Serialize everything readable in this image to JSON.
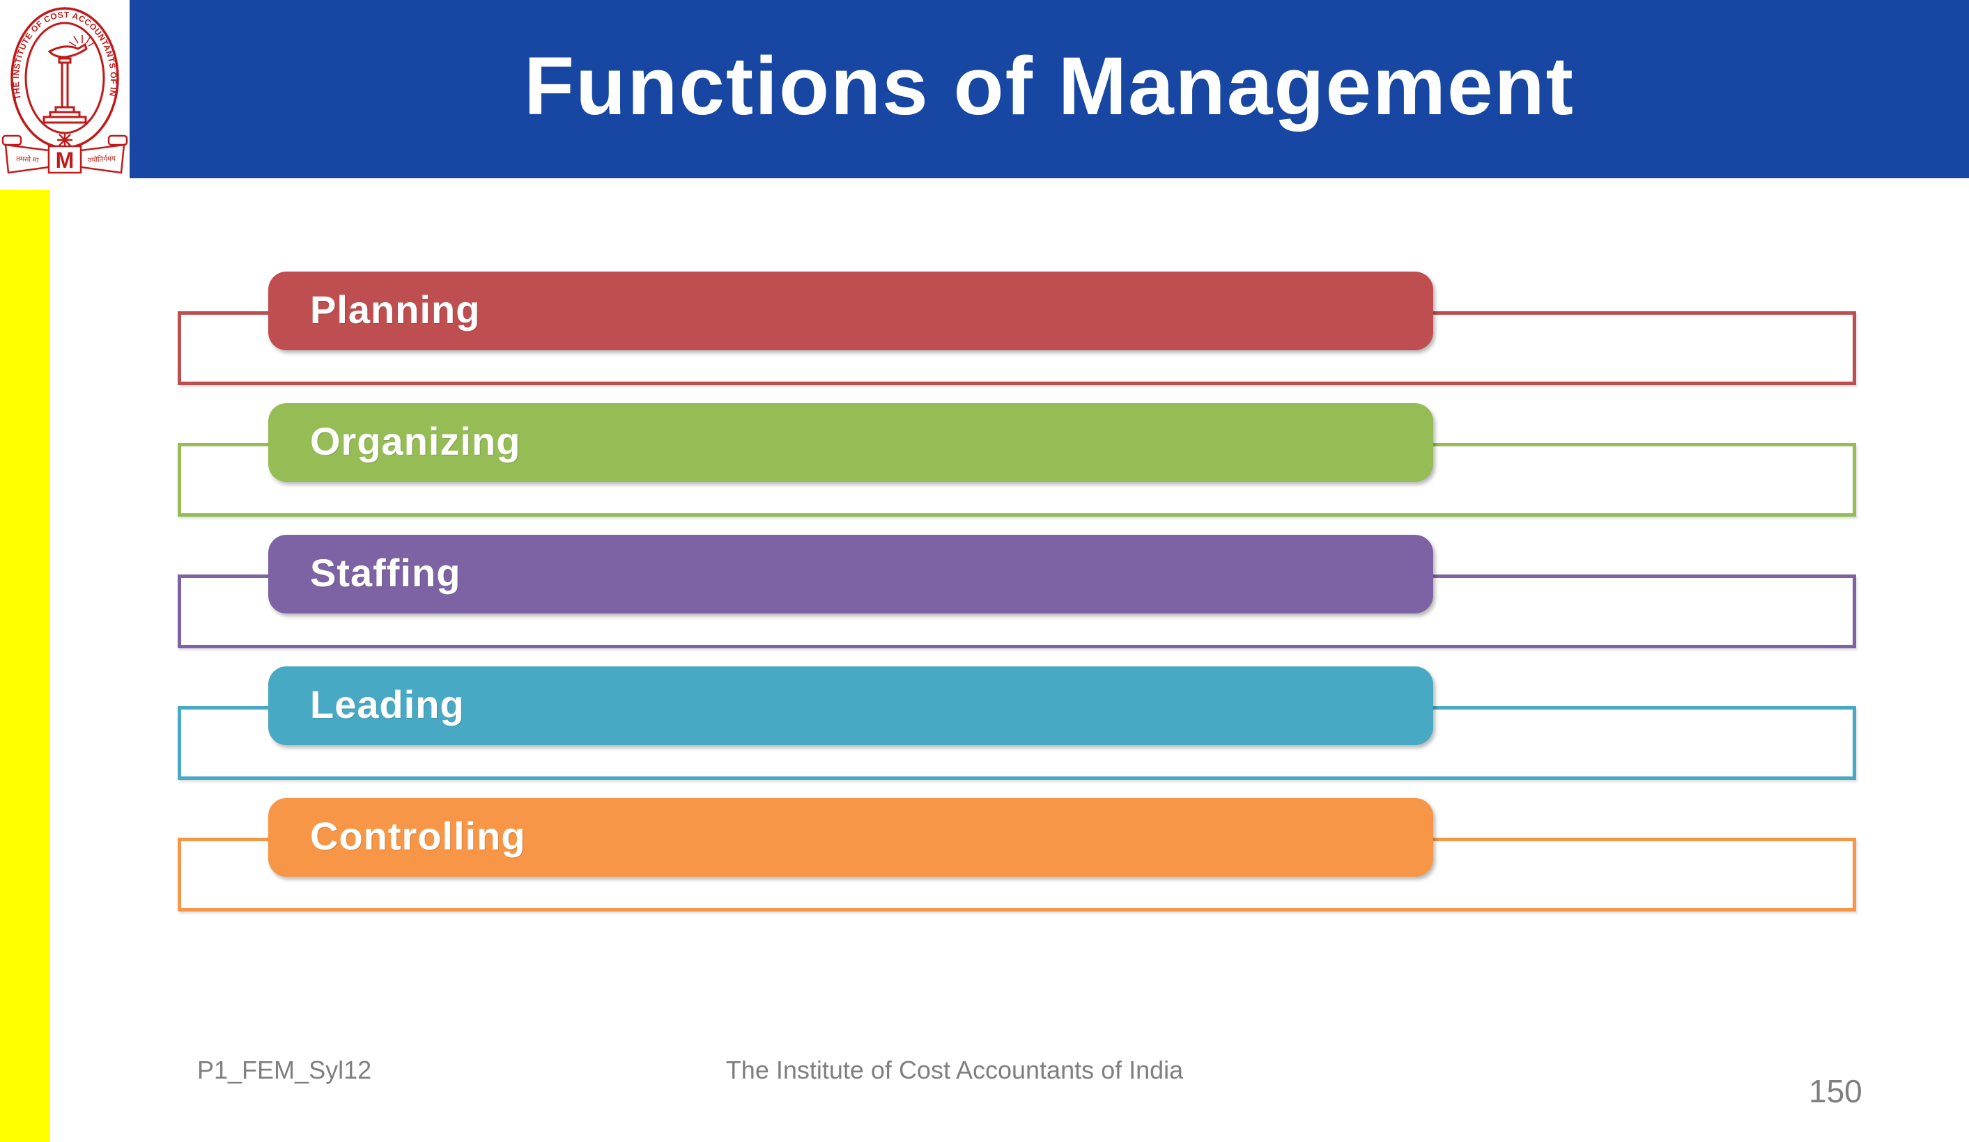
{
  "slide": {
    "title": "Functions of Management",
    "title_bar_color": "#1747A3",
    "accent_stripe_color": "#FFFF00",
    "background_color": "#FFFFFF",
    "logo": {
      "ring_text": "THE INSTITUTE OF COST ACCOUNTANTS OF INDIA",
      "motto_left": "तमसो मा",
      "motto_right": "ज्योतिर्गमय",
      "monogram": "M",
      "color": "#C21A1A"
    }
  },
  "functions": [
    {
      "label": "Planning",
      "color": "#BE4E4F"
    },
    {
      "label": "Organizing",
      "color": "#95BC55"
    },
    {
      "label": "Staffing",
      "color": "#7D63A3"
    },
    {
      "label": "Leading",
      "color": "#48A9C5"
    },
    {
      "label": "Controlling",
      "color": "#F79646"
    }
  ],
  "layout_note": "",
  "footer": {
    "left": "P1_FEM_Syl12",
    "center": "The Institute of Cost Accountants of India",
    "page_number": "150"
  }
}
